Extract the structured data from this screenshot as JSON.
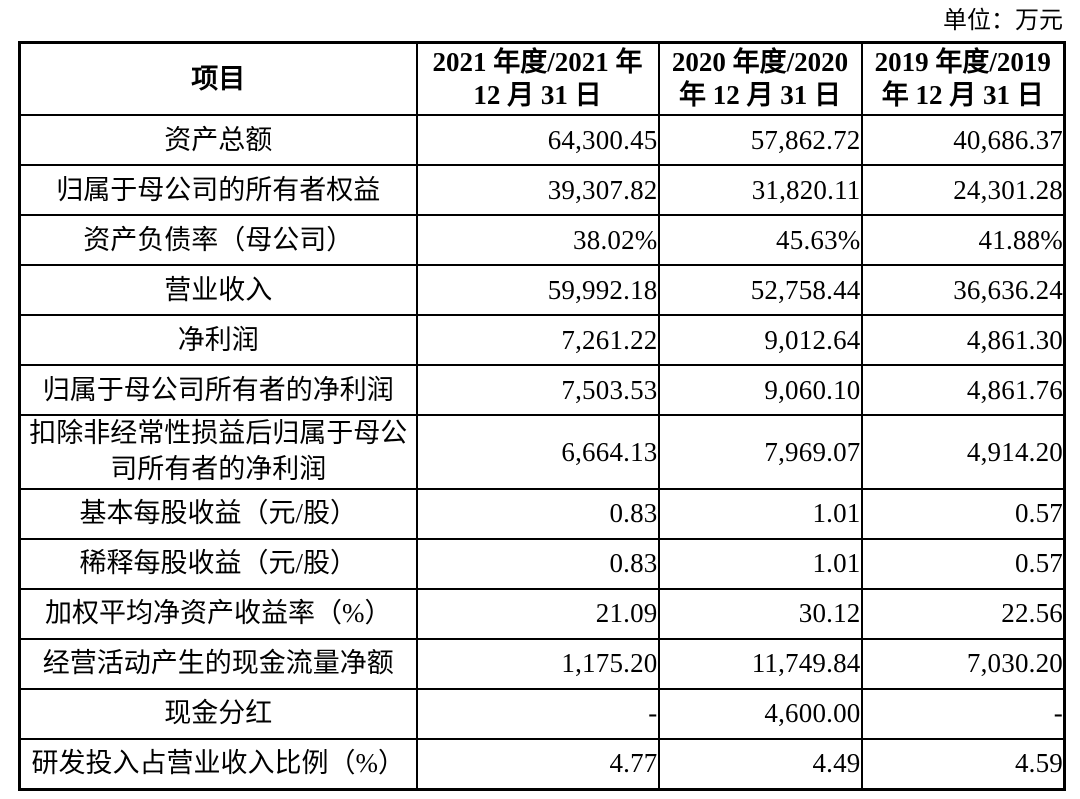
{
  "page": {
    "unit_label": "单位：万元",
    "background_color": "#ffffff",
    "text_color": "#000000",
    "border_color": "#000000"
  },
  "table": {
    "header": {
      "item_col": "项目",
      "year_cols": [
        {
          "key": "2021",
          "lines": [
            "2021 年度/2021 年",
            "12 月 31 日"
          ],
          "full": "2021 年度/2021 年 12 月 31 日"
        },
        {
          "key": "2020",
          "lines": [
            "2020 年度/2020",
            "年 12 月 31 日"
          ],
          "full": "2020 年度/2020 年 12 月 31 日"
        },
        {
          "key": "2019",
          "lines": [
            "2019 年度/2019",
            "年 12 月 31 日"
          ],
          "full": "2019 年度/2019 年 12 月 31 日"
        }
      ]
    },
    "rows": [
      {
        "label": "资产总额",
        "values": [
          "64,300.45",
          "57,862.72",
          "40,686.37"
        ]
      },
      {
        "label": "归属于母公司的所有者权益",
        "values": [
          "39,307.82",
          "31,820.11",
          "24,301.28"
        ]
      },
      {
        "label": "资产负债率（母公司）",
        "values": [
          "38.02%",
          "45.63%",
          "41.88%"
        ]
      },
      {
        "label": "营业收入",
        "values": [
          "59,992.18",
          "52,758.44",
          "36,636.24"
        ]
      },
      {
        "label": "净利润",
        "values": [
          "7,261.22",
          "9,012.64",
          "4,861.30"
        ]
      },
      {
        "label": "归属于母公司所有者的净利润",
        "values": [
          "7,503.53",
          "9,060.10",
          "4,861.76"
        ]
      },
      {
        "label": "扣除非经常性损益后归属于母公司所有者的净利润",
        "values": [
          "6,664.13",
          "7,969.07",
          "4,914.20"
        ]
      },
      {
        "label": "基本每股收益（元/股）",
        "values": [
          "0.83",
          "1.01",
          "0.57"
        ]
      },
      {
        "label": "稀释每股收益（元/股）",
        "values": [
          "0.83",
          "1.01",
          "0.57"
        ]
      },
      {
        "label": "加权平均净资产收益率（%）",
        "values": [
          "21.09",
          "30.12",
          "22.56"
        ]
      },
      {
        "label": "经营活动产生的现金流量净额",
        "values": [
          "1,175.20",
          "11,749.84",
          "7,030.20"
        ]
      },
      {
        "label": "现金分红",
        "values": [
          "-",
          "4,600.00",
          "-"
        ]
      },
      {
        "label": "研发投入占营业收入比例（%）",
        "values": [
          "4.77",
          "4.49",
          "4.59"
        ]
      }
    ]
  }
}
